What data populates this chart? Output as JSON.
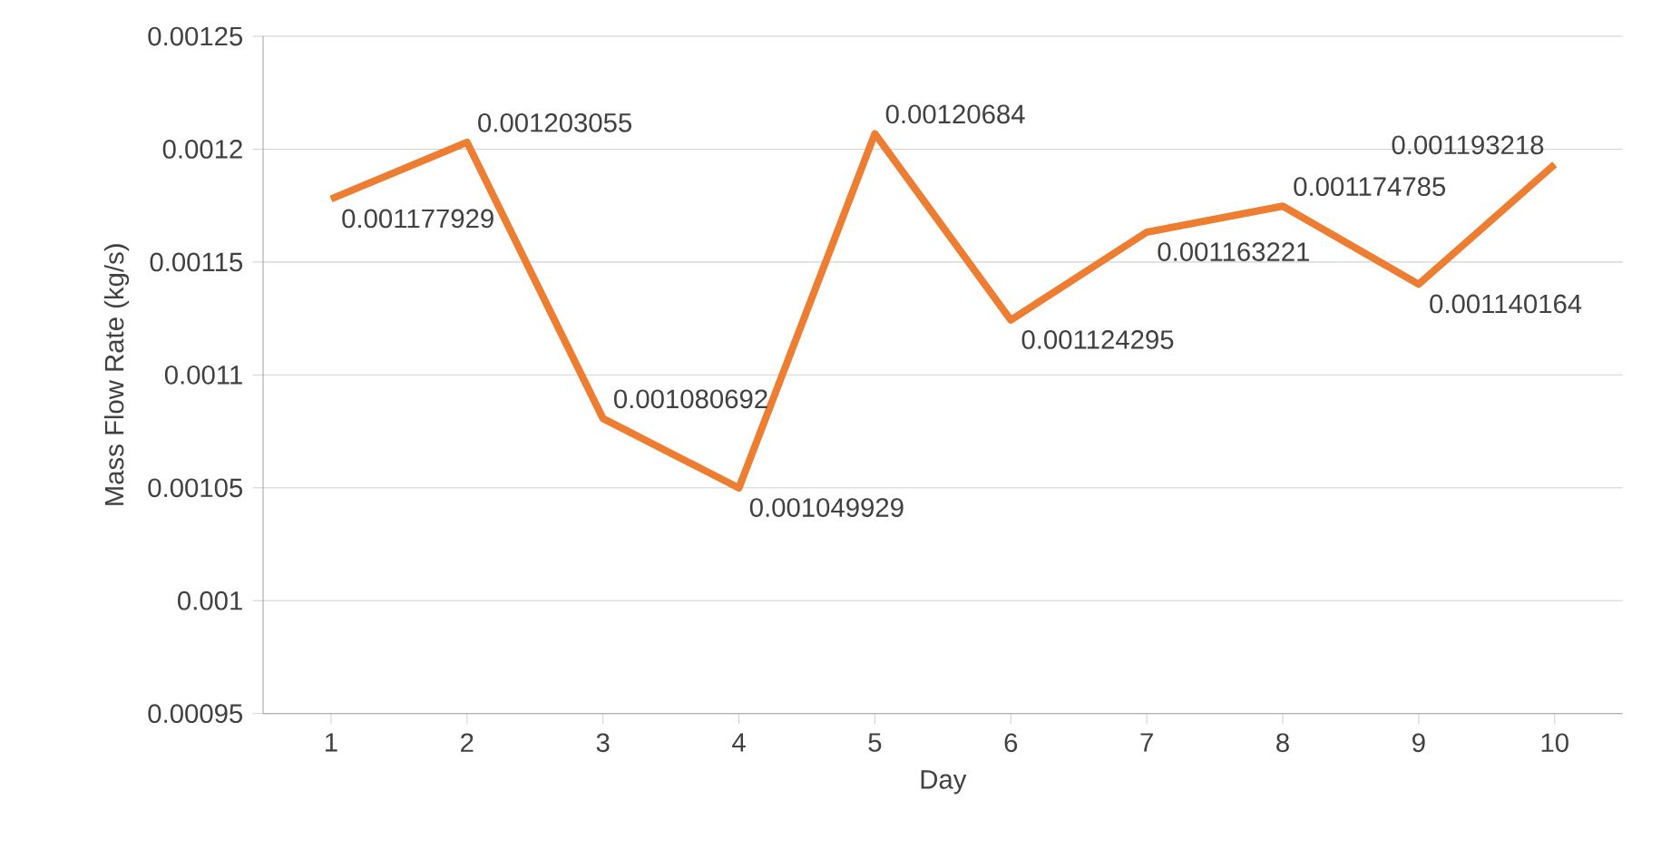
{
  "chart_data": {
    "type": "line",
    "xlabel": "Day",
    "ylabel": "Mass Flow Rate (kg/s)",
    "categories": [
      "1",
      "2",
      "3",
      "4",
      "5",
      "6",
      "7",
      "8",
      "9",
      "10"
    ],
    "values": [
      0.001177929,
      0.001203055,
      0.001080692,
      0.001049929,
      0.00120684,
      0.001124295,
      0.001163221,
      0.001174785,
      0.001140164,
      0.001193218
    ],
    "color": "#ed7d31",
    "ylim": [
      0.00095,
      0.00125
    ],
    "yticks": [
      0.00095,
      0.001,
      0.00105,
      0.0011,
      0.00115,
      0.0012,
      0.00125
    ],
    "grid": "y",
    "data_labels": true,
    "marker": "none",
    "line_style": "solid"
  }
}
